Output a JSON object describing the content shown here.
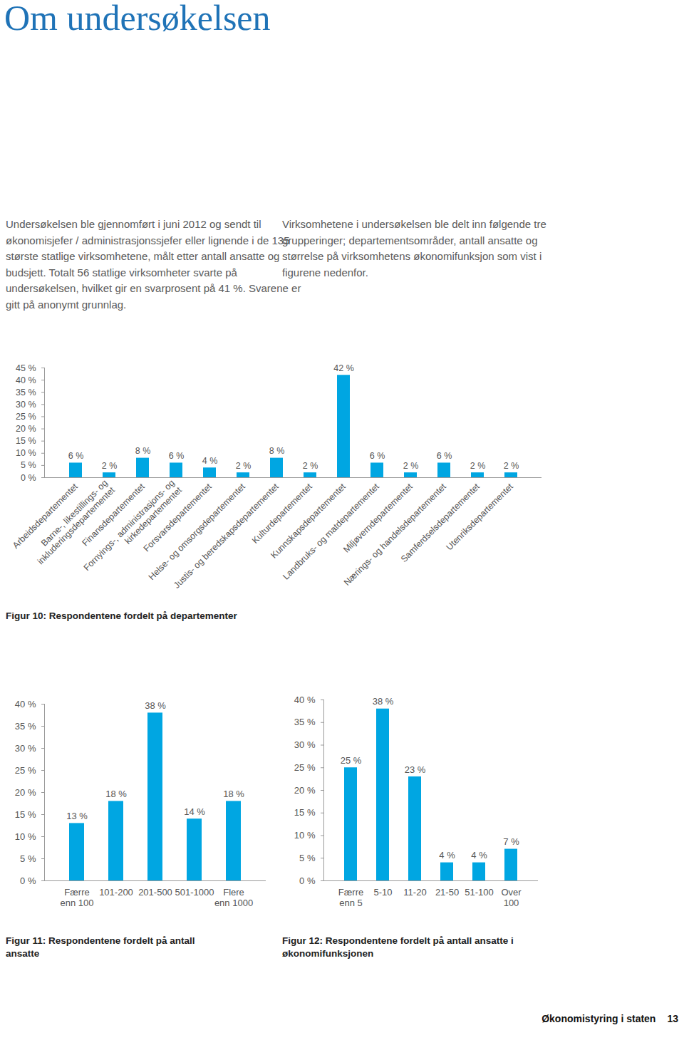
{
  "header": {
    "title": "Om undersøkelsen"
  },
  "paragraphs": [
    "Undersøkelsen ble gjennomført i juni 2012 og sendt til økonomisjefer / administrasjonssjefer eller lignende i de 135 største statlige virksomhetene, målt etter antall ansatte og budsjett. Totalt 56 statlige virksomheter svarte på undersøkelsen, hvilket gir en svarprosent på 41 %. Svarene er gitt på anonymt grunnlag.",
    "Virksomhetene i undersøkelsen ble delt inn følgende tre grupperinger; departementsområder, antall ansatte og størrelse på virksomhetens økonomifunksjon som vist i figurene nedenfor."
  ],
  "chart_data": [
    {
      "type": "bar",
      "title": "Figur 10: Respondentene fordelt på departementer",
      "categories": [
        "Arbeidsdepartementet",
        "Barne-, likestillings- og\ninkluderingsdepartementet",
        "Finansdepartementet",
        "Fornyings-, administrasjons- og\nkirkedepartementet",
        "Forsvarsdepartementet",
        "Helse- og omsorgsdepartementet",
        "Justis- og beredskapsdepartementet",
        "Kulturdepartementet",
        "Kunnskapsdepartementet",
        "Landbruks- og matdepartementet",
        "Miljøverndepartementet",
        "Nærings- og handelsdepartementet",
        "Samferdselsdepartementet",
        "Utenriksdepartementet"
      ],
      "values": [
        6,
        2,
        8,
        6,
        4,
        2,
        8,
        2,
        42,
        6,
        2,
        6,
        2,
        2
      ],
      "value_labels": [
        "6 %",
        "2 %",
        "8 %",
        "6 %",
        "4 %",
        "2 %",
        "8 %",
        "2 %",
        "42 %",
        "6 %",
        "2 %",
        "6 %",
        "2 %",
        "2 %"
      ],
      "color": "#00a6e2",
      "ylim": [
        0,
        45
      ],
      "yticks": [
        {
          "value": 0,
          "label": "0 %"
        },
        {
          "value": 5,
          "label": "5 %"
        },
        {
          "value": 10,
          "label": "10 %"
        },
        {
          "value": 15,
          "label": "15 %"
        },
        {
          "value": 20,
          "label": "20 %"
        },
        {
          "value": 25,
          "label": "25 %"
        },
        {
          "value": 30,
          "label": "30 %"
        },
        {
          "value": 35,
          "label": "35 %"
        },
        {
          "value": 40,
          "label": "40 %"
        },
        {
          "value": 45,
          "label": "45 %"
        }
      ],
      "grid": false,
      "data_labels": true
    },
    {
      "type": "bar",
      "title": "Figur 11: Respondentene fordelt på antall ansatte",
      "categories": [
        "Færre\nenn 100",
        "101-200",
        "201-500",
        "501-1000",
        "Flere\nenn 1000"
      ],
      "values": [
        13,
        18,
        38,
        14,
        18
      ],
      "value_labels": [
        "13 %",
        "18 %",
        "38 %",
        "14 %",
        "18 %"
      ],
      "color": "#00a6e2",
      "ylim": [
        0,
        40
      ],
      "yticks": [
        {
          "value": 0,
          "label": "0 %"
        },
        {
          "value": 5,
          "label": "5 %"
        },
        {
          "value": 10,
          "label": "10 %"
        },
        {
          "value": 15,
          "label": "15 %"
        },
        {
          "value": 20,
          "label": "20 %"
        },
        {
          "value": 25,
          "label": "25 %"
        },
        {
          "value": 30,
          "label": "30 %"
        },
        {
          "value": 35,
          "label": "35 %"
        },
        {
          "value": 40,
          "label": "40 %"
        }
      ],
      "grid": false,
      "data_labels": true
    },
    {
      "type": "bar",
      "title": "Figur 12: Respondentene fordelt på antall ansatte i økonomifunksjonen",
      "categories": [
        "Færre\nenn 5",
        "5-10",
        "11-20",
        "21-50",
        "51-100",
        "Over\n100"
      ],
      "values": [
        25,
        38,
        23,
        4,
        4,
        7
      ],
      "value_labels": [
        "25 %",
        "38 %",
        "23 %",
        "4 %",
        "4 %",
        "7 %"
      ],
      "color": "#00a6e2",
      "ylim": [
        0,
        40
      ],
      "yticks": [
        {
          "value": 0,
          "label": "0 %"
        },
        {
          "value": 5,
          "label": "5 %"
        },
        {
          "value": 10,
          "label": "10 %"
        },
        {
          "value": 15,
          "label": "15 %"
        },
        {
          "value": 20,
          "label": "20 %"
        },
        {
          "value": 25,
          "label": "25 %"
        },
        {
          "value": 30,
          "label": "30 %"
        },
        {
          "value": 35,
          "label": "35 %"
        },
        {
          "value": 40,
          "label": "40 %"
        }
      ],
      "grid": false,
      "data_labels": true
    }
  ],
  "footer": {
    "title": "Økonomistyring i staten",
    "page": "13"
  }
}
